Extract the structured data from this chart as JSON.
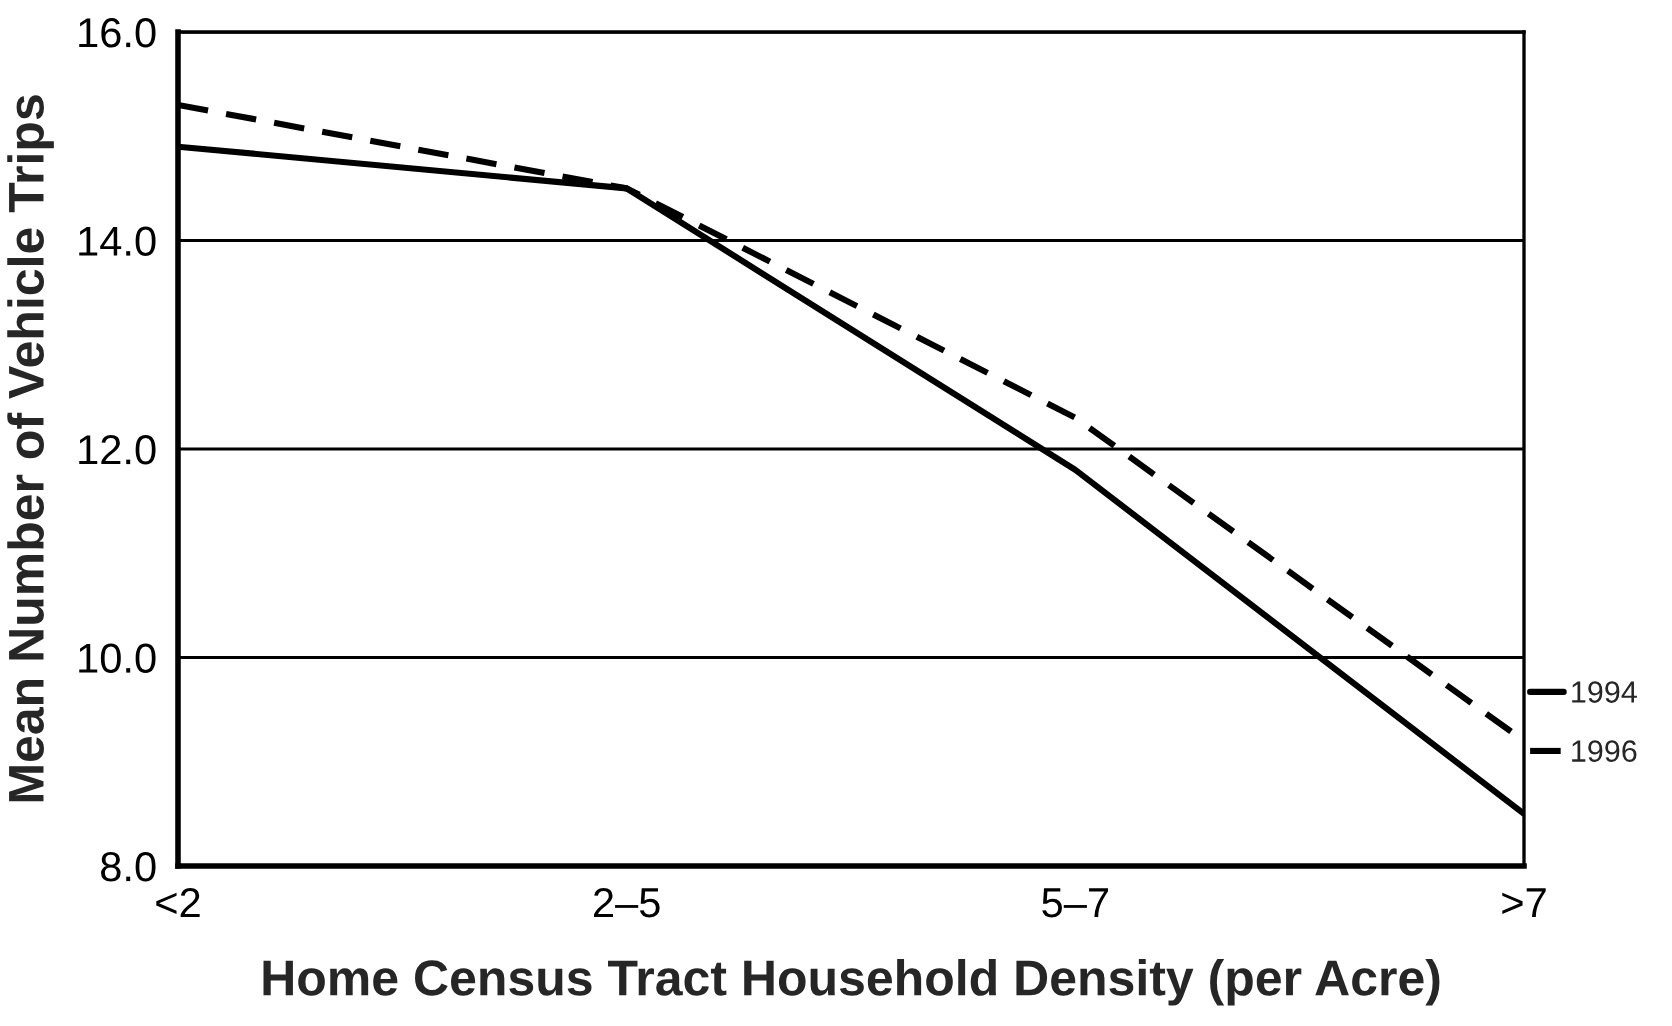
{
  "chart_data": {
    "type": "line",
    "xlabel": "Home Census Tract Household Density (per Acre)",
    "ylabel": "Mean Number of Vehicle Trips",
    "categories": [
      "<2",
      "2–5",
      "5–7",
      ">7"
    ],
    "ylim": [
      8,
      16
    ],
    "yticks": [
      {
        "value": 8,
        "label": "8.0"
      },
      {
        "value": 10,
        "label": "10.0"
      },
      {
        "value": 12,
        "label": "12.0"
      },
      {
        "value": 14,
        "label": "14.0"
      },
      {
        "value": 16,
        "label": "16.0"
      }
    ],
    "series": [
      {
        "name": "1994",
        "color": "#000000",
        "line_style": "solid",
        "values": [
          14.9,
          14.5,
          11.8,
          8.5
        ]
      },
      {
        "name": "1996",
        "color": "#000000",
        "line_style": "dashed",
        "values": [
          15.3,
          14.5,
          12.3,
          9.2
        ]
      }
    ],
    "grid": "y",
    "legend": "right",
    "marker": "none"
  }
}
